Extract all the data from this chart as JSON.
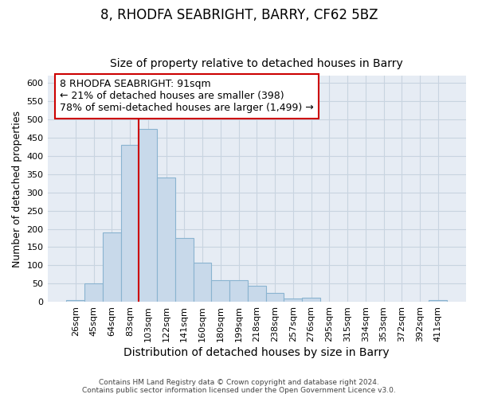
{
  "title": "8, RHODFA SEABRIGHT, BARRY, CF62 5BZ",
  "subtitle": "Size of property relative to detached houses in Barry",
  "xlabel": "Distribution of detached houses by size in Barry",
  "ylabel": "Number of detached properties",
  "categories": [
    "26sqm",
    "45sqm",
    "64sqm",
    "83sqm",
    "103sqm",
    "122sqm",
    "141sqm",
    "160sqm",
    "180sqm",
    "199sqm",
    "218sqm",
    "238sqm",
    "257sqm",
    "276sqm",
    "295sqm",
    "315sqm",
    "334sqm",
    "353sqm",
    "372sqm",
    "392sqm",
    "411sqm"
  ],
  "values": [
    5,
    50,
    190,
    430,
    475,
    340,
    175,
    108,
    60,
    60,
    45,
    25,
    10,
    12,
    0,
    0,
    0,
    0,
    0,
    0,
    5
  ],
  "bar_color": "#c8d9ea",
  "bar_edge_color": "#8ab4d0",
  "grid_color": "#c8d4e0",
  "bg_color": "#e6ecf4",
  "vline_color": "#cc0000",
  "vline_label": "8 RHODFA SEABRIGHT: 91sqm",
  "annotation_smaller": "← 21% of detached houses are smaller (398)",
  "annotation_larger": "78% of semi-detached houses are larger (1,499) →",
  "annotation_box_color": "#cc0000",
  "footer": "Contains HM Land Registry data © Crown copyright and database right 2024.\nContains public sector information licensed under the Open Government Licence v3.0.",
  "ylim": [
    0,
    620
  ],
  "yticks": [
    0,
    50,
    100,
    150,
    200,
    250,
    300,
    350,
    400,
    450,
    500,
    550,
    600
  ],
  "title_fontsize": 12,
  "subtitle_fontsize": 10,
  "tick_fontsize": 8,
  "ylabel_fontsize": 9,
  "xlabel_fontsize": 10,
  "footer_fontsize": 6.5,
  "ann_fontsize": 9
}
